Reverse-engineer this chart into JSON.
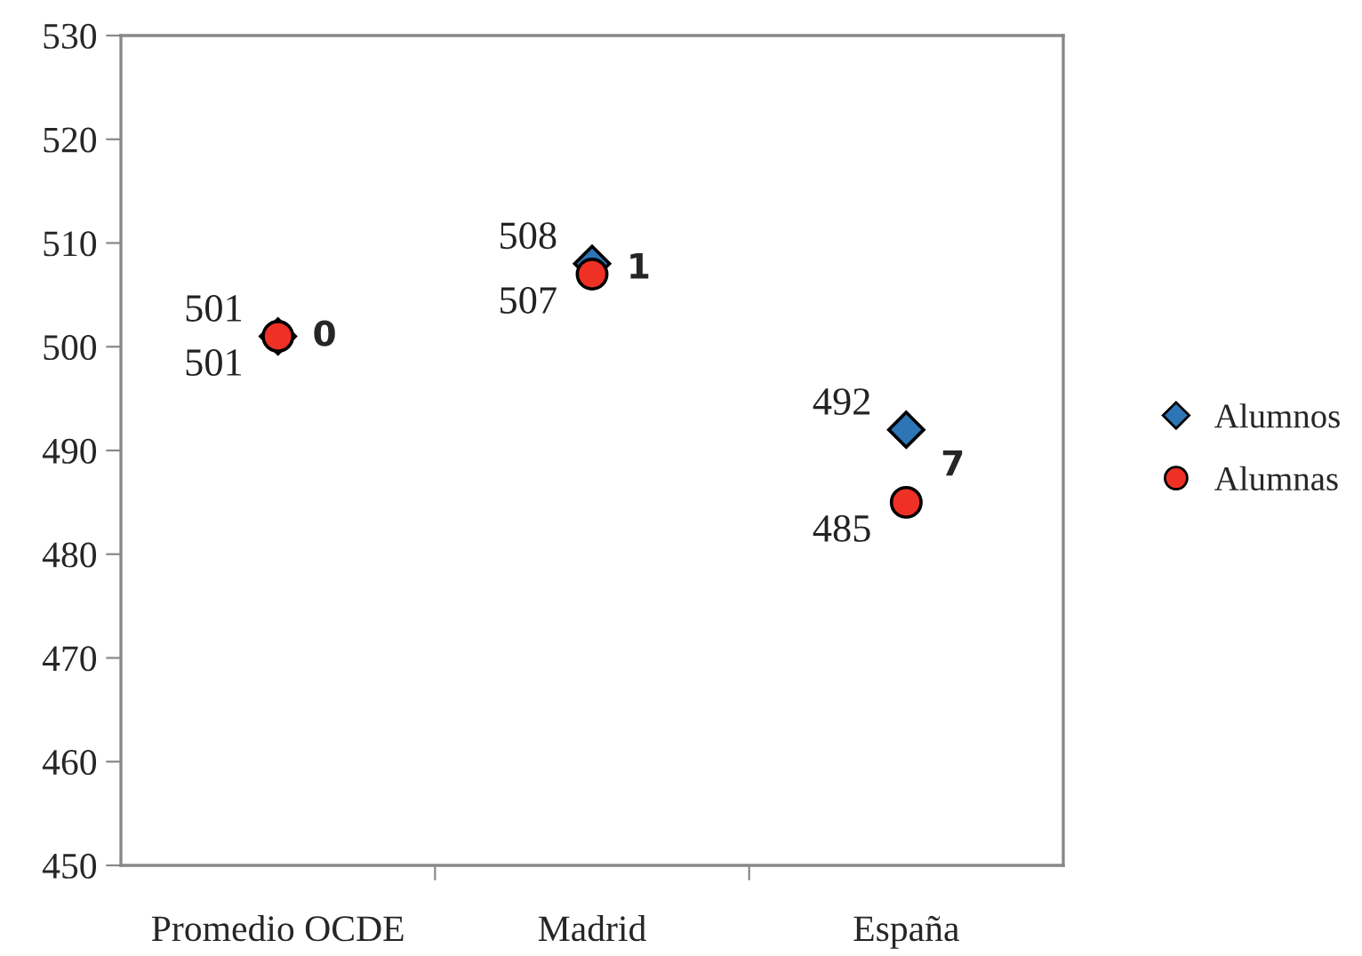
{
  "chart_data": {
    "type": "scatter",
    "categories": [
      "Promedio OCDE",
      "Madrid",
      "España"
    ],
    "series": [
      {
        "name": "Alumnos",
        "color": "#2e75b6",
        "marker": "diamond",
        "values": [
          501,
          508,
          492
        ],
        "value_labels": [
          "501",
          "508",
          "492"
        ]
      },
      {
        "name": "Alumnas",
        "color": "#ee3124",
        "marker": "circle",
        "values": [
          501,
          507,
          485
        ],
        "value_labels": [
          "501",
          "507",
          "485"
        ]
      }
    ],
    "ylim": [
      450,
      530
    ],
    "yticks": [
      450,
      460,
      470,
      480,
      490,
      500,
      510,
      520,
      530
    ],
    "grid": false,
    "legend": "right",
    "annotations": [
      "0",
      "1",
      "7"
    ]
  }
}
